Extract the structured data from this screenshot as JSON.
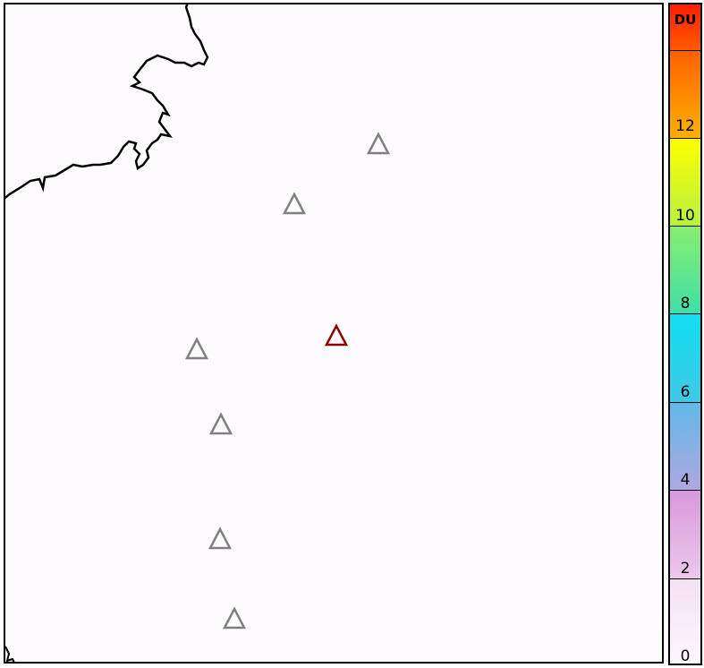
{
  "colorbar": {
    "unit": "DU",
    "ticks": [
      "12",
      "10",
      "8",
      "6",
      "4",
      "2",
      "0"
    ],
    "range": [
      0,
      15
    ],
    "segments": [
      {
        "from": "#ff1e00",
        "to": "#ff5a00"
      },
      {
        "from": "#ff6000",
        "to": "#ffb000"
      },
      {
        "from": "#ffff00",
        "to": "#b8f040"
      },
      {
        "from": "#88ee70",
        "to": "#40dfa8"
      },
      {
        "from": "#10e0f0",
        "to": "#40c8e8"
      },
      {
        "from": "#60b8e8",
        "to": "#b0a8e0"
      },
      {
        "from": "#d898dc",
        "to": "#ecc8ec"
      },
      {
        "from": "#f4e0f4",
        "to": "#fdf8fd"
      }
    ]
  },
  "volcanoes": [
    {
      "name": "volcano-1",
      "color": "#808080"
    },
    {
      "name": "volcano-2",
      "color": "#808080"
    },
    {
      "name": "volcano-active",
      "color": "#8b0000"
    },
    {
      "name": "volcano-4",
      "color": "#808080"
    },
    {
      "name": "volcano-5",
      "color": "#808080"
    },
    {
      "name": "volcano-6",
      "color": "#808080"
    },
    {
      "name": "volcano-7",
      "color": "#808080"
    }
  ]
}
